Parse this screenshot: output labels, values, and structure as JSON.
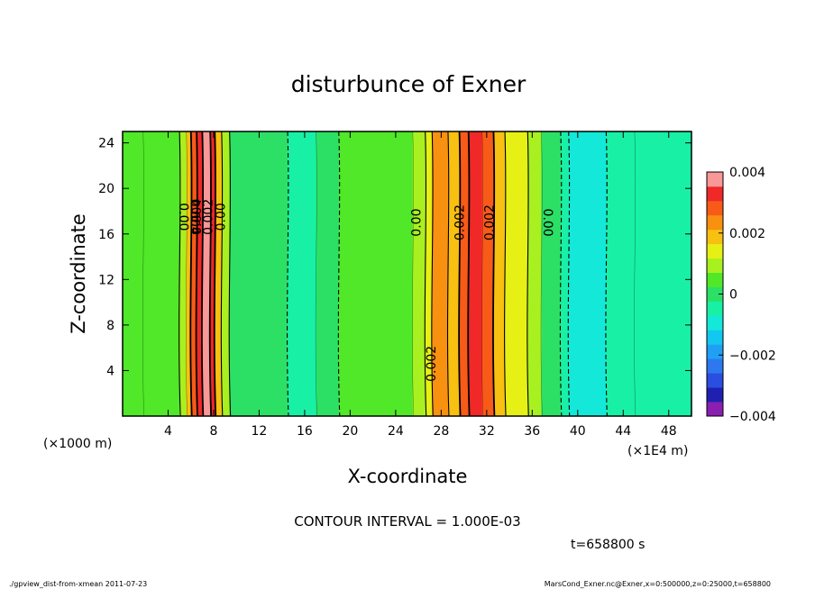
{
  "chart_data": {
    "type": "heatmap",
    "title": "disturbunce of Exner",
    "xlabel": "X-coordinate",
    "ylabel": "Z-coordinate",
    "x_unit_left": "(×1000 m)",
    "x_unit_right": "(×1E4 m)",
    "xlim": [
      0,
      50
    ],
    "ylim": [
      0,
      25
    ],
    "x_ticks": [
      4,
      8,
      12,
      16,
      20,
      24,
      28,
      32,
      36,
      40,
      44,
      48
    ],
    "y_ticks": [
      4,
      8,
      12,
      16,
      20,
      24
    ],
    "colorbar": {
      "levels": [
        -0.004,
        -0.0035,
        -0.003,
        -0.0025,
        -0.002,
        -0.0015,
        -0.001,
        -0.0005,
        0,
        0.0005,
        0.001,
        0.0015,
        0.002,
        0.0025,
        0.003,
        0.0035,
        0.004
      ],
      "colors": [
        "#8a1fb0",
        "#2020b0",
        "#2a4ee0",
        "#2d78ee",
        "#1fa0f5",
        "#12c8f0",
        "#14e8d8",
        "#18f0a6",
        "#2ce066",
        "#50e828",
        "#a8f020",
        "#e6f014",
        "#f8c010",
        "#f89010",
        "#f85a18",
        "#f02828",
        "#f89898"
      ],
      "tick_labels": [
        "0.004",
        "0.002",
        "0",
        "−0.002",
        "−0.004"
      ],
      "tick_values": [
        0.004,
        0.002,
        0,
        -0.002,
        -0.004
      ]
    },
    "bands": [
      {
        "x0": 0,
        "x1": 1.8,
        "value": 0.0004
      },
      {
        "x0": 1.8,
        "x1": 5.0,
        "value": 0.0005
      },
      {
        "x0": 5.0,
        "x1": 5.6,
        "value": 0.0011
      },
      {
        "x0": 5.6,
        "x1": 6.0,
        "value": 0.0019
      },
      {
        "x0": 6.0,
        "x1": 6.5,
        "value": 0.0029
      },
      {
        "x0": 6.5,
        "x1": 7.0,
        "value": 0.0037
      },
      {
        "x0": 7.0,
        "x1": 7.7,
        "value": 0.0041
      },
      {
        "x0": 7.7,
        "x1": 8.1,
        "value": 0.0033
      },
      {
        "x0": 8.1,
        "x1": 8.7,
        "value": 0.0022
      },
      {
        "x0": 8.7,
        "x1": 9.4,
        "value": 0.0011
      },
      {
        "x0": 9.4,
        "x1": 14.5,
        "value": 0.0001
      },
      {
        "x0": 14.5,
        "x1": 17.0,
        "value": -0.0004
      },
      {
        "x0": 17.0,
        "x1": 19.0,
        "value": -0.0001
      },
      {
        "x0": 19.0,
        "x1": 25.5,
        "value": 0.0003
      },
      {
        "x0": 25.5,
        "x1": 26.6,
        "value": 0.0008
      },
      {
        "x0": 26.6,
        "x1": 27.2,
        "value": 0.0016
      },
      {
        "x0": 27.2,
        "x1": 28.6,
        "value": 0.0023
      },
      {
        "x0": 28.6,
        "x1": 29.6,
        "value": 0.0019
      },
      {
        "x0": 29.6,
        "x1": 30.4,
        "value": 0.0028
      },
      {
        "x0": 30.4,
        "x1": 31.6,
        "value": 0.0036
      },
      {
        "x0": 31.6,
        "x1": 32.6,
        "value": 0.0031
      },
      {
        "x0": 32.6,
        "x1": 33.6,
        "value": 0.0022
      },
      {
        "x0": 33.6,
        "x1": 35.6,
        "value": 0.0016
      },
      {
        "x0": 35.6,
        "x1": 36.8,
        "value": 0.0009
      },
      {
        "x0": 36.8,
        "x1": 38.5,
        "value": 0.0001
      },
      {
        "x0": 38.5,
        "x1": 39.2,
        "value": -0.0006
      },
      {
        "x0": 39.2,
        "x1": 42.5,
        "value": -0.0012
      },
      {
        "x0": 42.5,
        "x1": 45.0,
        "value": -0.0006
      },
      {
        "x0": 45.0,
        "x1": 50.0,
        "value": -0.0003
      }
    ],
    "contour_labels": [
      {
        "x": 5.0,
        "y": 17.5,
        "text": "0.00",
        "rotate": 90
      },
      {
        "x": 6.0,
        "y": 17.5,
        "text": "0.004",
        "rotate": 90
      },
      {
        "x": 6.9,
        "y": 17.5,
        "text": "0.004",
        "rotate": -90
      },
      {
        "x": 7.9,
        "y": 17.5,
        "text": "0.002",
        "rotate": -90
      },
      {
        "x": 9.0,
        "y": 17.5,
        "text": "0.00",
        "rotate": -90
      },
      {
        "x": 26.2,
        "y": 17.0,
        "text": "0.00",
        "rotate": -90
      },
      {
        "x": 30.0,
        "y": 17.0,
        "text": "0.002",
        "rotate": -90
      },
      {
        "x": 32.6,
        "y": 17.0,
        "text": "0.002",
        "rotate": -90
      },
      {
        "x": 37.0,
        "y": 17.0,
        "text": "0.00",
        "rotate": 90
      },
      {
        "x": 27.5,
        "y": 4.6,
        "text": "0.002",
        "rotate": -90
      }
    ],
    "contour_interval": "CONTOUR INTERVAL = 1.000E-03",
    "time_label": "t=658800 s"
  },
  "footer": {
    "left": "./gpview_dist-from-xmean  2011-07-23",
    "right": "MarsCond_Exner.nc@Exner,x=0:500000,z=0:25000,t=658800"
  }
}
